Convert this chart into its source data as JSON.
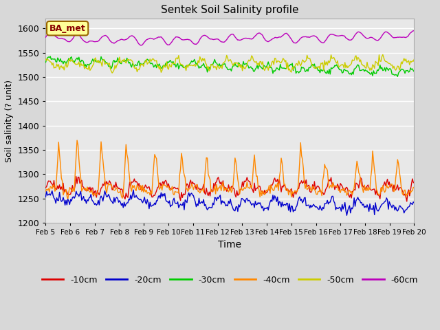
{
  "title": "Sentek Soil Salinity profile",
  "xlabel": "Time",
  "ylabel": "Soil salinity (? unit)",
  "ylim": [
    1200,
    1620
  ],
  "yticks": [
    1200,
    1250,
    1300,
    1350,
    1400,
    1450,
    1500,
    1550,
    1600
  ],
  "date_labels": [
    "Feb 5",
    "Feb 6",
    "Feb 7",
    "Feb 8",
    "Feb 9",
    "Feb 10",
    "Feb 11",
    "Feb 12",
    "Feb 13",
    "Feb 14",
    "Feb 15",
    "Feb 16",
    "Feb 17",
    "Feb 18",
    "Feb 19",
    "Feb 20"
  ],
  "n_points": 400,
  "legend_labels": [
    "-10cm",
    "-20cm",
    "-30cm",
    "-40cm",
    "-50cm",
    "-60cm"
  ],
  "legend_colors": [
    "#dd0000",
    "#0000cc",
    "#00cc00",
    "#ff8800",
    "#cccc00",
    "#bb00bb"
  ],
  "annotation_text": "BA_met",
  "annotation_bg": "#ffff99",
  "annotation_border": "#996600",
  "background_color": "#d8d8d8",
  "axes_bg": "#e8e8e8",
  "grid_color": "#ffffff",
  "line_width": 1.0,
  "seed": 42,
  "figsize": [
    6.4,
    4.8
  ],
  "dpi": 100
}
